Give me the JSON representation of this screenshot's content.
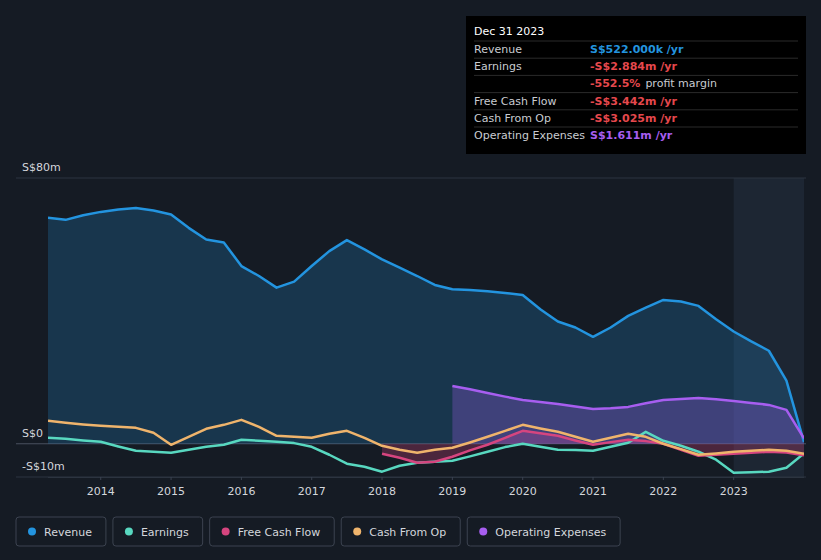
{
  "chart_data": {
    "type": "line",
    "x": [
      2013.25,
      2013.5,
      2013.75,
      2014.0,
      2014.25,
      2014.5,
      2014.75,
      2015.0,
      2015.25,
      2015.5,
      2015.75,
      2016.0,
      2016.25,
      2016.5,
      2016.75,
      2017.0,
      2017.25,
      2017.5,
      2017.75,
      2018.0,
      2018.25,
      2018.5,
      2018.75,
      2019.0,
      2019.25,
      2019.5,
      2019.75,
      2020.0,
      2020.25,
      2020.5,
      2020.75,
      2021.0,
      2021.25,
      2021.5,
      2021.75,
      2022.0,
      2022.25,
      2022.5,
      2022.75,
      2023.0,
      2023.25,
      2023.5,
      2023.75,
      2024.0
    ],
    "series": [
      {
        "name": "Revenue",
        "color": "#2394df",
        "type": "area",
        "values": [
          68.0,
          67.4,
          68.8,
          69.8,
          70.5,
          71.0,
          70.2,
          69.0,
          65.0,
          61.5,
          60.6,
          53.5,
          50.5,
          47.0,
          48.8,
          53.5,
          58.0,
          61.3,
          58.5,
          55.5,
          53.0,
          50.5,
          47.8,
          46.5,
          46.3,
          45.9,
          45.4,
          44.8,
          40.5,
          36.8,
          35.0,
          32.2,
          35.0,
          38.5,
          41.0,
          43.3,
          42.8,
          41.5,
          37.5,
          33.8,
          30.8,
          28.0,
          19.0,
          0.522
        ]
      },
      {
        "name": "Earnings",
        "color": "#58d8c0",
        "type": "line",
        "values": [
          1.8,
          1.5,
          1.0,
          0.6,
          -0.8,
          -2.1,
          -2.4,
          -2.7,
          -1.8,
          -0.9,
          -0.3,
          1.2,
          0.9,
          0.6,
          0.2,
          -0.9,
          -3.3,
          -6.0,
          -6.9,
          -8.4,
          -6.6,
          -5.7,
          -5.4,
          -5.1,
          -3.8,
          -2.4,
          -1.0,
          0.0,
          -0.9,
          -1.8,
          -1.9,
          -2.1,
          -0.9,
          0.3,
          3.6,
          0.9,
          -0.6,
          -2.4,
          -4.8,
          -8.7,
          -8.6,
          -8.4,
          -7.2,
          -2.884
        ]
      },
      {
        "name": "Free Cash Flow",
        "color": "#d6457f",
        "type": "area",
        "values": [
          null,
          null,
          null,
          null,
          null,
          null,
          null,
          null,
          null,
          null,
          null,
          null,
          null,
          null,
          null,
          null,
          null,
          null,
          null,
          -3.0,
          -4.2,
          -5.7,
          -5.4,
          -3.9,
          -2.0,
          -0.3,
          1.8,
          3.9,
          3.2,
          2.4,
          1.0,
          -0.3,
          0.5,
          1.2,
          0.8,
          0.0,
          -1.8,
          -3.6,
          -3.3,
          -3.0,
          -2.7,
          -2.4,
          -2.6,
          -3.442
        ]
      },
      {
        "name": "Cash From Op",
        "color": "#efb46c",
        "type": "line",
        "values": [
          6.9,
          6.3,
          5.8,
          5.4,
          5.1,
          4.8,
          3.3,
          -0.3,
          2.1,
          4.5,
          5.7,
          7.2,
          5.1,
          2.4,
          2.1,
          1.8,
          3.0,
          3.9,
          1.8,
          -0.6,
          -1.8,
          -2.7,
          -1.8,
          -1.2,
          0.4,
          2.1,
          3.9,
          5.7,
          4.6,
          3.6,
          2.1,
          0.6,
          1.8,
          3.0,
          2.1,
          0.0,
          -1.6,
          -3.3,
          -2.9,
          -2.4,
          -2.1,
          -1.8,
          -2.1,
          -3.025
        ]
      },
      {
        "name": "Operating Expenses",
        "color": "#a75ef0",
        "type": "area",
        "values": [
          null,
          null,
          null,
          null,
          null,
          null,
          null,
          null,
          null,
          null,
          null,
          null,
          null,
          null,
          null,
          null,
          null,
          null,
          null,
          null,
          null,
          null,
          null,
          17.4,
          16.4,
          15.3,
          14.2,
          13.2,
          12.6,
          12.0,
          11.2,
          10.5,
          10.7,
          11.1,
          12.2,
          13.2,
          13.5,
          13.8,
          13.4,
          12.9,
          12.3,
          11.7,
          10.2,
          1.611
        ]
      }
    ],
    "xlim": [
      2013.25,
      2024.0
    ],
    "xticks": [
      2014,
      2015,
      2016,
      2017,
      2018,
      2019,
      2020,
      2021,
      2022,
      2023
    ],
    "ylim": [
      -10,
      80
    ],
    "yticks": [
      {
        "value": -10,
        "label": "-S$10m"
      },
      {
        "value": 0,
        "label": "S$0"
      },
      {
        "value": 80,
        "label": "S$80m"
      }
    ],
    "grid": true,
    "legend": "bottom-left",
    "annotation": {
      "title": "Dec 31 2023",
      "rows": [
        {
          "label": "Revenue",
          "value": "S$522.000k /yr",
          "color": "#2394df"
        },
        {
          "label": "Earnings",
          "value": "-S$2.884m /yr",
          "color": "#e5484d"
        },
        {
          "value": "-552.5%",
          "text": "profit margin",
          "color": "#e5484d"
        },
        {
          "label": "Free Cash Flow",
          "value": "-S$3.442m /yr",
          "color": "#e5484d"
        },
        {
          "label": "Cash From Op",
          "value": "-S$3.025m /yr",
          "color": "#e5484d"
        },
        {
          "label": "Operating Expenses",
          "value": "S$1.611m /yr",
          "color": "#a75ef0"
        }
      ]
    }
  }
}
